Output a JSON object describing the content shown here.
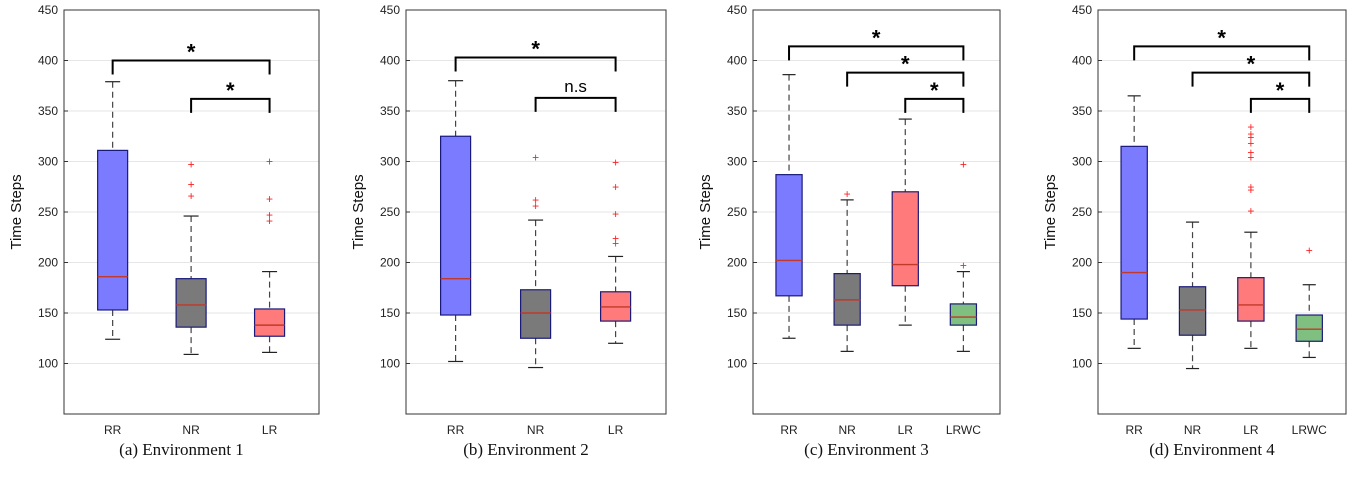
{
  "chart_data": [
    {
      "type": "box",
      "caption": "(a) Environment 1",
      "ylabel": "Time Steps",
      "ylim": [
        50,
        450
      ],
      "yticks": [
        100,
        150,
        200,
        250,
        300,
        350,
        400,
        450
      ],
      "grid": true,
      "categories": [
        "RR",
        "NR",
        "LR"
      ],
      "boxes": [
        {
          "label": "RR",
          "color": "#7b7bff",
          "min": 124,
          "q1": 153,
          "median": 186,
          "q3": 311,
          "max": 379,
          "outliers": []
        },
        {
          "label": "NR",
          "color": "#7a7a7a",
          "min": 109,
          "q1": 136,
          "median": 158,
          "q3": 184,
          "max": 246,
          "outliers": [
            266,
            277,
            297
          ]
        },
        {
          "label": "LR",
          "color": "#ff7b7b",
          "min": 111,
          "q1": 127,
          "median": 138,
          "q3": 154,
          "max": 191,
          "outliers": [
            241,
            247,
            263,
            300
          ]
        }
      ],
      "significance": [
        {
          "from": "RR",
          "to": "LR",
          "label": "*",
          "y": 400
        },
        {
          "from": "NR",
          "to": "LR",
          "label": "*",
          "y": 362
        }
      ]
    },
    {
      "type": "box",
      "caption": "(b) Environment 2",
      "ylabel": "Time Steps",
      "ylim": [
        50,
        450
      ],
      "yticks": [
        100,
        150,
        200,
        250,
        300,
        350,
        400,
        450
      ],
      "grid": true,
      "categories": [
        "RR",
        "NR",
        "LR"
      ],
      "boxes": [
        {
          "label": "RR",
          "color": "#7b7bff",
          "min": 102,
          "q1": 148,
          "median": 184,
          "q3": 325,
          "max": 380,
          "outliers": []
        },
        {
          "label": "NR",
          "color": "#7a7a7a",
          "min": 96,
          "q1": 125,
          "median": 150,
          "q3": 173,
          "max": 242,
          "outliers": [
            256,
            262,
            304
          ]
        },
        {
          "label": "LR",
          "color": "#ff7b7b",
          "min": 120,
          "q1": 142,
          "median": 156,
          "q3": 171,
          "max": 206,
          "outliers": [
            219,
            224,
            248,
            275,
            299
          ]
        }
      ],
      "significance": [
        {
          "from": "RR",
          "to": "LR",
          "label": "*",
          "y": 403
        },
        {
          "from": "NR",
          "to": "LR",
          "label": "n.s",
          "y": 363
        }
      ]
    },
    {
      "type": "box",
      "caption": "(c) Environment 3",
      "ylabel": "Time Steps",
      "ylim": [
        50,
        450
      ],
      "yticks": [
        100,
        150,
        200,
        250,
        300,
        350,
        400,
        450
      ],
      "grid": true,
      "categories": [
        "RR",
        "NR",
        "LR",
        "LRWC"
      ],
      "boxes": [
        {
          "label": "RR",
          "color": "#7b7bff",
          "min": 125,
          "q1": 167,
          "median": 202,
          "q3": 287,
          "max": 386,
          "outliers": []
        },
        {
          "label": "NR",
          "color": "#7a7a7a",
          "min": 112,
          "q1": 138,
          "median": 163,
          "q3": 189,
          "max": 262,
          "outliers": [
            268
          ]
        },
        {
          "label": "LR",
          "color": "#ff7b7b",
          "min": 138,
          "q1": 177,
          "median": 198,
          "q3": 270,
          "max": 342,
          "outliers": []
        },
        {
          "label": "LRWC",
          "color": "#7fbf7f",
          "min": 112,
          "q1": 138,
          "median": 146,
          "q3": 159,
          "max": 191,
          "outliers": [
            197,
            297
          ]
        }
      ],
      "significance": [
        {
          "from": "RR",
          "to": "LRWC",
          "label": "*",
          "y": 414
        },
        {
          "from": "NR",
          "to": "LRWC",
          "label": "*",
          "y": 388
        },
        {
          "from": "LR",
          "to": "LRWC",
          "label": "*",
          "y": 362
        }
      ]
    },
    {
      "type": "box",
      "caption": "(d) Environment 4",
      "ylabel": "Time Steps",
      "ylim": [
        50,
        450
      ],
      "yticks": [
        100,
        150,
        200,
        250,
        300,
        350,
        400,
        450
      ],
      "grid": true,
      "categories": [
        "RR",
        "NR",
        "LR",
        "LRWC"
      ],
      "boxes": [
        {
          "label": "RR",
          "color": "#7b7bff",
          "min": 115,
          "q1": 144,
          "median": 190,
          "q3": 315,
          "max": 365,
          "outliers": []
        },
        {
          "label": "NR",
          "color": "#7a7a7a",
          "min": 95,
          "q1": 128,
          "median": 153,
          "q3": 176,
          "max": 240,
          "outliers": []
        },
        {
          "label": "LR",
          "color": "#ff7b7b",
          "min": 115,
          "q1": 142,
          "median": 158,
          "q3": 185,
          "max": 230,
          "outliers": [
            251,
            272,
            275,
            304,
            309,
            318,
            324,
            327,
            334
          ]
        },
        {
          "label": "LRWC",
          "color": "#7fbf7f",
          "min": 106,
          "q1": 122,
          "median": 134,
          "q3": 148,
          "max": 178,
          "outliers": [
            212
          ]
        }
      ],
      "significance": [
        {
          "from": "RR",
          "to": "LRWC",
          "label": "*",
          "y": 414
        },
        {
          "from": "NR",
          "to": "LRWC",
          "label": "*",
          "y": 388
        },
        {
          "from": "LR",
          "to": "LRWC",
          "label": "*",
          "y": 362
        }
      ]
    }
  ]
}
